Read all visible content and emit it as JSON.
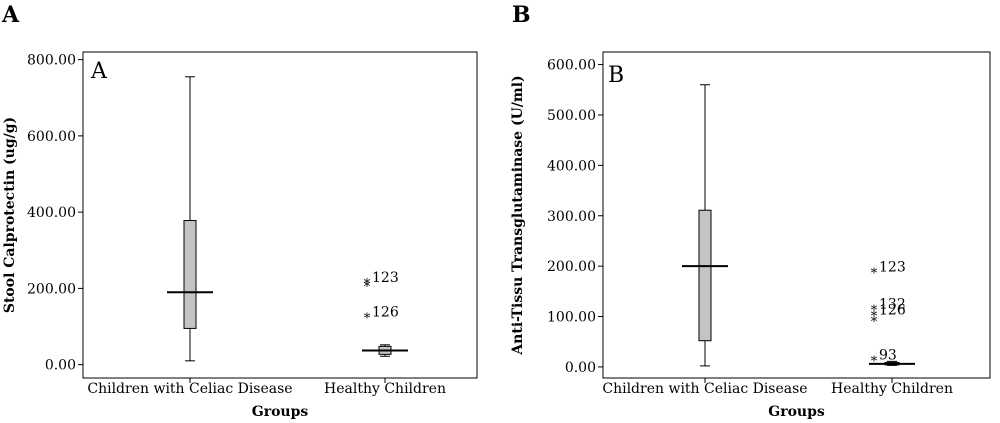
{
  "panels": [
    {
      "letter": "A"
    },
    {
      "letter": "B"
    }
  ],
  "chart_data": [
    {
      "type": "box",
      "panel_label": "A",
      "xlabel": "Groups",
      "ylabel": "Stool Calprotectin (ug/g)",
      "ylim": [
        -35,
        820
      ],
      "yticks": [
        0,
        200,
        400,
        600,
        800
      ],
      "ytick_labels": [
        "0.00",
        "200.00",
        "400.00",
        "600.00",
        "800.00"
      ],
      "grid": false,
      "categories": [
        "Children with Celiac Disease",
        "Healthy Children"
      ],
      "boxes": [
        {
          "category": "Children with Celiac Disease",
          "whisker_low": 10,
          "q1": 95,
          "median": 190,
          "q3": 378,
          "whisker_high": 755
        },
        {
          "category": "Healthy Children",
          "whisker_low": 22,
          "q1": 27,
          "median": 37,
          "q3": 48,
          "whisker_high": 52
        }
      ],
      "outliers": [
        {
          "category": "Healthy Children",
          "value": 222,
          "label": "123"
        },
        {
          "category": "Healthy Children",
          "value": 214,
          "label": ""
        },
        {
          "category": "Healthy Children",
          "value": 132,
          "label": "126"
        }
      ]
    },
    {
      "type": "box",
      "panel_label": "B",
      "xlabel": "Groups",
      "ylabel": "Anti-Tissu Transglutaminase (U/ml)",
      "ylim": [
        -22,
        625
      ],
      "yticks": [
        0,
        100,
        200,
        300,
        400,
        500,
        600
      ],
      "ytick_labels": [
        "0.00",
        "100.00",
        "200.00",
        "300.00",
        "400.00",
        "500.00",
        "600.00"
      ],
      "grid": false,
      "categories": [
        "Children with Celiac Disease",
        "Healthy Children"
      ],
      "boxes": [
        {
          "category": "Children with Celiac Disease",
          "whisker_low": 2,
          "q1": 52,
          "median": 200,
          "q3": 311,
          "whisker_high": 560
        },
        {
          "category": "Healthy Children",
          "whisker_low": 3,
          "q1": 4,
          "median": 6,
          "q3": 9,
          "whisker_high": 11
        }
      ],
      "outliers": [
        {
          "category": "Healthy Children",
          "value": 193,
          "label": "123"
        },
        {
          "category": "Healthy Children",
          "value": 120,
          "label": "132"
        },
        {
          "category": "Healthy Children",
          "value": 108,
          "label": "126"
        },
        {
          "category": "Healthy Children",
          "value": 97,
          "label": ""
        },
        {
          "category": "Healthy Children",
          "value": 19,
          "label": "93"
        }
      ]
    }
  ]
}
